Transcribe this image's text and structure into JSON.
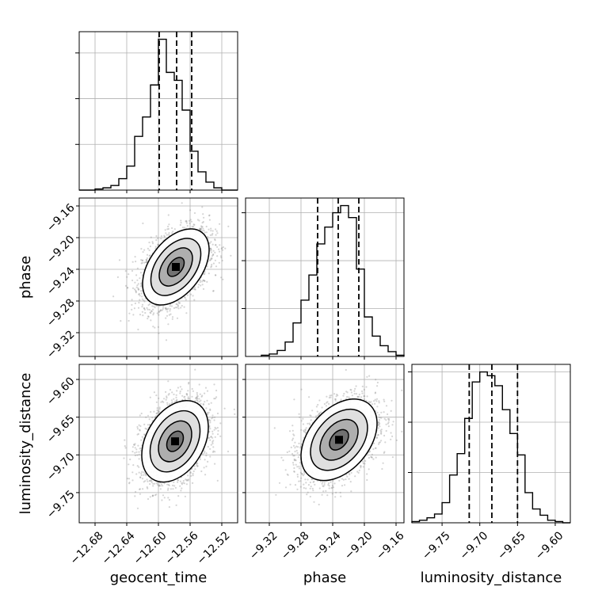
{
  "chart_data": {
    "type": "corner",
    "parameters": [
      "geocent_time",
      "phase",
      "luminosity_distance"
    ],
    "axes": {
      "geocent_time": {
        "label": "geocent_time",
        "range": [
          -12.7,
          -12.5
        ],
        "ticks": [
          -12.68,
          -12.64,
          -12.6,
          -12.56,
          -12.52
        ],
        "tick_labels": [
          "−12.68",
          "−12.64",
          "−12.60",
          "−12.56",
          "−12.52"
        ],
        "quantiles": [
          -12.599,
          -12.577,
          -12.558
        ],
        "histogram": {
          "bin_edges": [
            -12.7,
            -12.69,
            -12.68,
            -12.67,
            -12.66,
            -12.65,
            -12.64,
            -12.63,
            -12.62,
            -12.61,
            -12.6,
            -12.59,
            -12.58,
            -12.57,
            -12.56,
            -12.55,
            -12.54,
            -12.53,
            -12.52,
            -12.51,
            -12.5
          ],
          "counts": [
            0,
            0,
            1,
            2,
            4,
            10,
            21,
            47,
            64,
            92,
            132,
            103,
            96,
            70,
            34,
            16,
            7,
            2,
            0,
            0
          ]
        }
      },
      "phase": {
        "label": "phase",
        "range": [
          -9.35,
          -9.15
        ],
        "ticks": [
          -9.32,
          -9.28,
          -9.24,
          -9.2,
          -9.16
        ],
        "tick_labels": [
          "−9.32",
          "−9.28",
          "−9.24",
          "−9.20",
          "−9.16"
        ],
        "quantiles": [
          -9.259,
          -9.233,
          -9.207
        ],
        "histogram": {
          "bin_edges": [
            -9.33,
            -9.32,
            -9.31,
            -9.3,
            -9.29,
            -9.28,
            -9.27,
            -9.26,
            -9.25,
            -9.24,
            -9.23,
            -9.22,
            -9.21,
            -9.2,
            -9.19,
            -9.18,
            -9.17,
            -9.16,
            -9.15
          ],
          "counts": [
            1,
            2,
            5,
            12,
            28,
            47,
            68,
            94,
            108,
            120,
            126,
            116,
            73,
            33,
            17,
            9,
            4,
            1
          ]
        }
      },
      "luminosity_distance": {
        "label": "luminosity_distance",
        "range": [
          -9.79,
          -9.58
        ],
        "ticks": [
          -9.75,
          -9.7,
          -9.65,
          -9.6
        ],
        "tick_labels": [
          "−9.75",
          "−9.70",
          "−9.65",
          "−9.60"
        ],
        "quantiles": [
          -9.714,
          -9.684,
          -9.65
        ],
        "histogram": {
          "bin_edges": [
            -9.79,
            -9.78,
            -9.77,
            -9.76,
            -9.75,
            -9.74,
            -9.73,
            -9.72,
            -9.71,
            -9.7,
            -9.69,
            -9.68,
            -9.67,
            -9.66,
            -9.65,
            -9.64,
            -9.63,
            -9.62,
            -9.61,
            -9.6,
            -9.59,
            -9.58
          ],
          "counts": [
            1,
            2,
            4,
            7,
            16,
            38,
            55,
            83,
            112,
            120,
            117,
            109,
            90,
            71,
            54,
            24,
            11,
            6,
            2,
            1,
            0
          ]
        }
      }
    },
    "pairs": [
      {
        "x": "geocent_time",
        "y": "phase",
        "mean": [
          -12.578,
          -9.237
        ],
        "std": [
          0.021,
          0.024
        ],
        "corr": 0.45
      },
      {
        "x": "geocent_time",
        "y": "luminosity_distance",
        "mean": [
          -12.579,
          -9.682
        ],
        "std": [
          0.021,
          0.027
        ],
        "corr": 0.35
      },
      {
        "x": "phase",
        "y": "luminosity_distance",
        "mean": [
          -9.232,
          -9.68
        ],
        "std": [
          0.024,
          0.027
        ],
        "corr": 0.4
      }
    ],
    "contour_levels_sigma": [
      0.5,
      1.0,
      1.5,
      2.0
    ],
    "grid": true,
    "histogram_style": "step",
    "quantile_line_style": "dashed"
  }
}
